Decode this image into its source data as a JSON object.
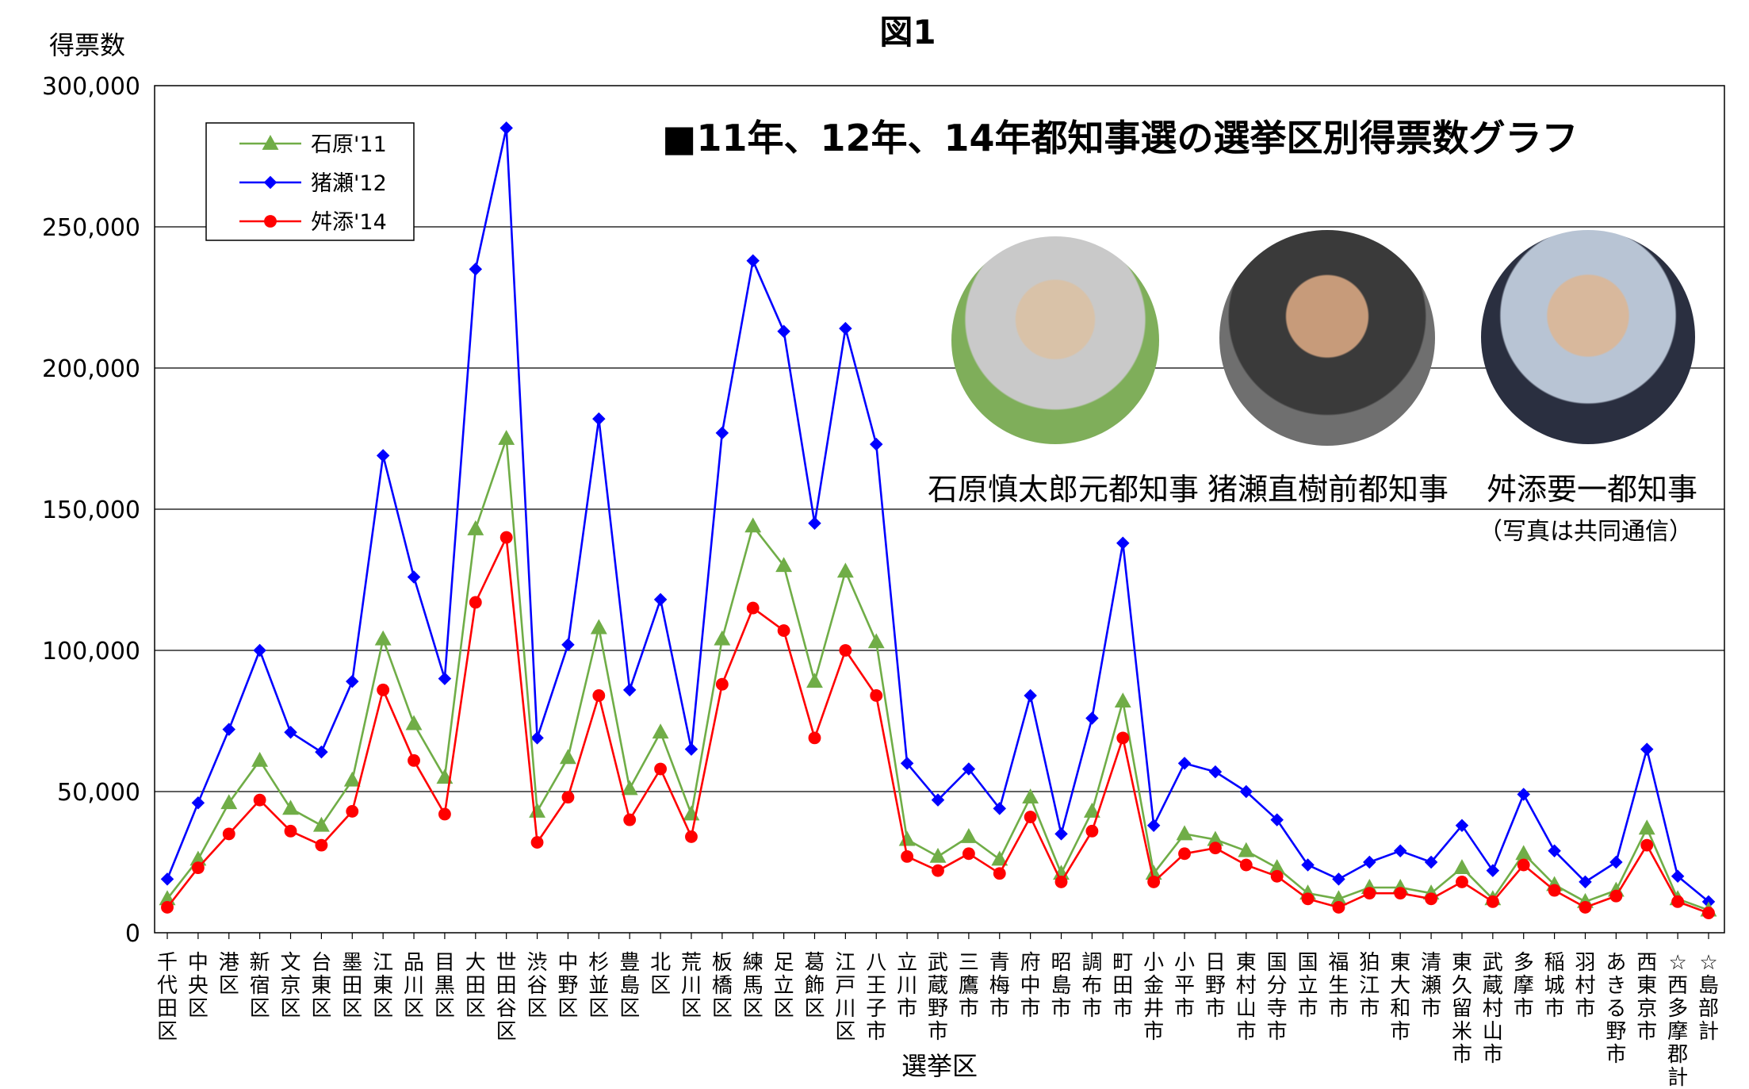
{
  "figure_label": "図1",
  "headline": "■11年、12年、14年都知事選の選挙区別得票数グラフ",
  "portraits": [
    {
      "caption": "石原慎太郎元都知事",
      "icon": "portrait-green-vest"
    },
    {
      "caption": "猪瀬直樹前都知事",
      "icon": "portrait-grey-jacket"
    },
    {
      "caption": "舛添要一都知事",
      "icon": "portrait-dark-suit"
    }
  ],
  "photo_credit": "（写真は共同通信）",
  "colors": {
    "ishihara": "#70ad47",
    "inose": "#0000ff",
    "masuzoe": "#ff0000",
    "grid": "#000000"
  },
  "chart_data": {
    "type": "line",
    "title": "",
    "ylabel": "得票数",
    "xlabel": "選挙区",
    "ylim": [
      0,
      300000
    ],
    "yticks": [
      "0",
      "50,000",
      "100,000",
      "150,000",
      "200,000",
      "250,000",
      "300,000"
    ],
    "ytick_values": [
      0,
      50000,
      100000,
      150000,
      200000,
      250000,
      300000
    ],
    "grid": true,
    "legend": "top-left",
    "categories": [
      "千代田区",
      "中央区",
      "港区",
      "新宿区",
      "文京区",
      "台東区",
      "墨田区",
      "江東区",
      "品川区",
      "目黒区",
      "大田区",
      "世田谷区",
      "渋谷区",
      "中野区",
      "杉並区",
      "豊島区",
      "北区",
      "荒川区",
      "板橋区",
      "練馬区",
      "足立区",
      "葛飾区",
      "江戸川区",
      "八王子市",
      "立川市",
      "武蔵野市",
      "三鷹市",
      "青梅市",
      "府中市",
      "昭島市",
      "調布市",
      "町田市",
      "小金井市",
      "小平市",
      "日野市",
      "東村山市",
      "国分寺市",
      "国立市",
      "福生市",
      "狛江市",
      "東大和市",
      "清瀬市",
      "東久留米市",
      "武蔵村山市",
      "多摩市",
      "稲城市",
      "羽村市",
      "あきる野市",
      "西東京市",
      "☆西多摩郡計",
      "☆島部計"
    ],
    "series": [
      {
        "name": "石原'11",
        "marker": "triangle",
        "color": "#70ad47",
        "values": [
          12000,
          26000,
          46000,
          61000,
          44000,
          38000,
          54000,
          104000,
          74000,
          55000,
          143000,
          175000,
          43000,
          62000,
          108000,
          51000,
          71000,
          42000,
          104000,
          144000,
          130000,
          89000,
          128000,
          103000,
          33000,
          27000,
          34000,
          26000,
          48000,
          21000,
          43000,
          82000,
          21000,
          35000,
          33000,
          29000,
          23000,
          14000,
          12000,
          16000,
          16000,
          14000,
          23000,
          12000,
          28000,
          17000,
          11000,
          15000,
          37000,
          12000,
          8000
        ]
      },
      {
        "name": "猪瀬'12",
        "marker": "diamond",
        "color": "#0000ff",
        "values": [
          19000,
          46000,
          72000,
          100000,
          71000,
          64000,
          89000,
          169000,
          126000,
          90000,
          235000,
          285000,
          69000,
          102000,
          182000,
          86000,
          118000,
          65000,
          177000,
          238000,
          213000,
          145000,
          214000,
          173000,
          60000,
          47000,
          58000,
          44000,
          84000,
          35000,
          76000,
          138000,
          38000,
          60000,
          57000,
          50000,
          40000,
          24000,
          19000,
          25000,
          29000,
          25000,
          38000,
          22000,
          49000,
          29000,
          18000,
          25000,
          65000,
          20000,
          11000
        ]
      },
      {
        "name": "舛添'14",
        "marker": "circle",
        "color": "#ff0000",
        "values": [
          9000,
          23000,
          35000,
          47000,
          36000,
          31000,
          43000,
          86000,
          61000,
          42000,
          117000,
          140000,
          32000,
          48000,
          84000,
          40000,
          58000,
          34000,
          88000,
          115000,
          107000,
          69000,
          100000,
          84000,
          27000,
          22000,
          28000,
          21000,
          41000,
          18000,
          36000,
          69000,
          18000,
          28000,
          30000,
          24000,
          20000,
          12000,
          9000,
          14000,
          14000,
          12000,
          18000,
          11000,
          24000,
          15000,
          9000,
          13000,
          31000,
          11000,
          7000
        ]
      }
    ]
  }
}
